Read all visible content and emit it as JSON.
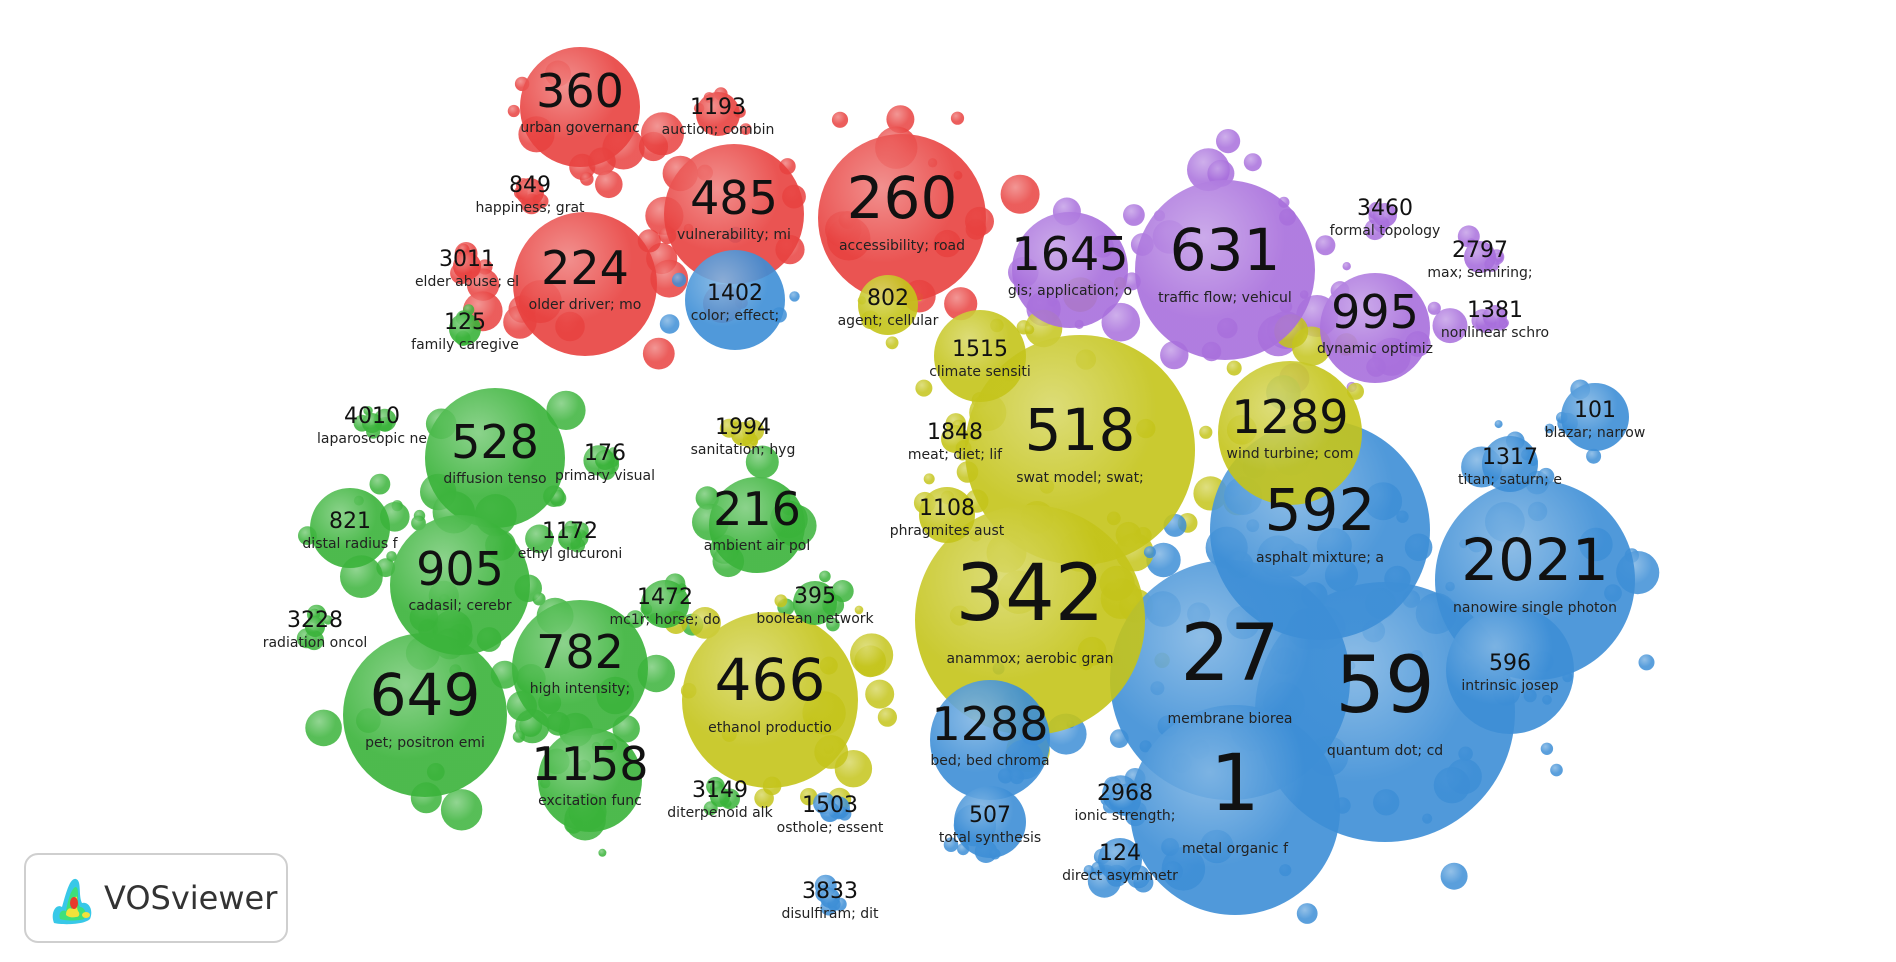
{
  "logo": {
    "text": "VOSviewer",
    "icon": "vosviewer-logo-icon"
  },
  "colors": {
    "red": "#e8413f",
    "blue": "#3d8ed6",
    "green": "#3ab33a",
    "yellow": "#c4c41a",
    "purple": "#a86fdc"
  },
  "clusters": [
    {
      "num": "360",
      "label": "urban governanc",
      "color": "red",
      "size": "m"
    },
    {
      "num": "1193",
      "label": "auction; combin",
      "color": "red",
      "size": "s"
    },
    {
      "num": "485",
      "label": "vulnerability; mi",
      "color": "red",
      "size": "m"
    },
    {
      "num": "260",
      "label": "accessibility; road",
      "color": "red",
      "size": "l"
    },
    {
      "num": "849",
      "label": "happiness; grat",
      "color": "red",
      "size": "s"
    },
    {
      "num": "3011",
      "label": "elder abuse; el",
      "color": "red",
      "size": "s"
    },
    {
      "num": "224",
      "label": "older driver; mo",
      "color": "red",
      "size": "m"
    },
    {
      "num": "1402",
      "label": "color; effect;",
      "color": "blue",
      "size": "s"
    },
    {
      "num": "802",
      "label": "agent; cellular",
      "color": "yellow",
      "size": "s"
    },
    {
      "num": "1515",
      "label": "climate sensiti",
      "color": "yellow",
      "size": "s"
    },
    {
      "num": "1645",
      "label": "gis; application; o",
      "color": "purple",
      "size": "m"
    },
    {
      "num": "631",
      "label": "traffic flow; vehicul",
      "color": "purple",
      "size": "l"
    },
    {
      "num": "3460",
      "label": "formal topology",
      "color": "purple",
      "size": "s"
    },
    {
      "num": "2797",
      "label": "max; semiring;",
      "color": "purple",
      "size": "s"
    },
    {
      "num": "995",
      "label": "dynamic optimiz",
      "color": "purple",
      "size": "m"
    },
    {
      "num": "1381",
      "label": "nonlinear schro",
      "color": "purple",
      "size": "s"
    },
    {
      "num": "101",
      "label": "blazar; narrow",
      "color": "blue",
      "size": "s"
    },
    {
      "num": "125",
      "label": "family caregive",
      "color": "green",
      "size": "s"
    },
    {
      "num": "4010",
      "label": "laparoscopic ne",
      "color": "green",
      "size": "s"
    },
    {
      "num": "528",
      "label": "diffusion tenso",
      "color": "green",
      "size": "m"
    },
    {
      "num": "176",
      "label": "primary visual",
      "color": "green",
      "size": "s"
    },
    {
      "num": "1994",
      "label": "sanitation; hyg",
      "color": "yellow",
      "size": "s"
    },
    {
      "num": "1848",
      "label": "meat; diet; lif",
      "color": "yellow",
      "size": "s"
    },
    {
      "num": "518",
      "label": "swat model; swat;",
      "color": "yellow",
      "size": "l"
    },
    {
      "num": "1289",
      "label": "wind turbine; com",
      "color": "yellow",
      "size": "m"
    },
    {
      "num": "1317",
      "label": "titan; saturn; e",
      "color": "blue",
      "size": "s"
    },
    {
      "num": "821",
      "label": "distal radius f",
      "color": "green",
      "size": "s"
    },
    {
      "num": "1172",
      "label": "ethyl glucuroni",
      "color": "green",
      "size": "s"
    },
    {
      "num": "216",
      "label": "ambient air pol",
      "color": "green",
      "size": "m"
    },
    {
      "num": "1108",
      "label": "phragmites aust",
      "color": "yellow",
      "size": "s"
    },
    {
      "num": "592",
      "label": "asphalt mixture; a",
      "color": "blue",
      "size": "l"
    },
    {
      "num": "2021",
      "label": "nanowire single photon",
      "color": "blue",
      "size": "l"
    },
    {
      "num": "905",
      "label": "cadasil; cerebr",
      "color": "green",
      "size": "m"
    },
    {
      "num": "1472",
      "label": "mc1r; horse; do",
      "color": "green",
      "size": "s"
    },
    {
      "num": "395",
      "label": "boolean network",
      "color": "green",
      "size": "s"
    },
    {
      "num": "342",
      "label": "anammox; aerobic gran",
      "color": "yellow",
      "size": "xl"
    },
    {
      "num": "3228",
      "label": "radiation oncol",
      "color": "green",
      "size": "s"
    },
    {
      "num": "782",
      "label": "high intensity;",
      "color": "green",
      "size": "m"
    },
    {
      "num": "27",
      "label": "membrane biorea",
      "color": "blue",
      "size": "xl"
    },
    {
      "num": "596",
      "label": "intrinsic josep",
      "color": "blue",
      "size": "s"
    },
    {
      "num": "59",
      "label": "quantum dot; cd",
      "color": "blue",
      "size": "xl"
    },
    {
      "num": "649",
      "label": "pet; positron emi",
      "color": "green",
      "size": "l"
    },
    {
      "num": "466",
      "label": "ethanol productio",
      "color": "yellow",
      "size": "l"
    },
    {
      "num": "1288",
      "label": "bed; bed chroma",
      "color": "blue",
      "size": "m"
    },
    {
      "num": "1158",
      "label": "excitation func",
      "color": "green",
      "size": "m"
    },
    {
      "num": "3149",
      "label": "diterpenoid alk",
      "color": "green",
      "size": "s"
    },
    {
      "num": "1503",
      "label": "osthole; essent",
      "color": "blue",
      "size": "s"
    },
    {
      "num": "507",
      "label": "total synthesis",
      "color": "blue",
      "size": "s"
    },
    {
      "num": "2968",
      "label": "ionic strength;",
      "color": "blue",
      "size": "s"
    },
    {
      "num": "1",
      "label": "metal organic f",
      "color": "blue",
      "size": "xl"
    },
    {
      "num": "124",
      "label": "direct asymmetr",
      "color": "blue",
      "size": "s"
    },
    {
      "num": "3833",
      "label": "disulfiram; dit",
      "color": "blue",
      "size": "s"
    }
  ]
}
